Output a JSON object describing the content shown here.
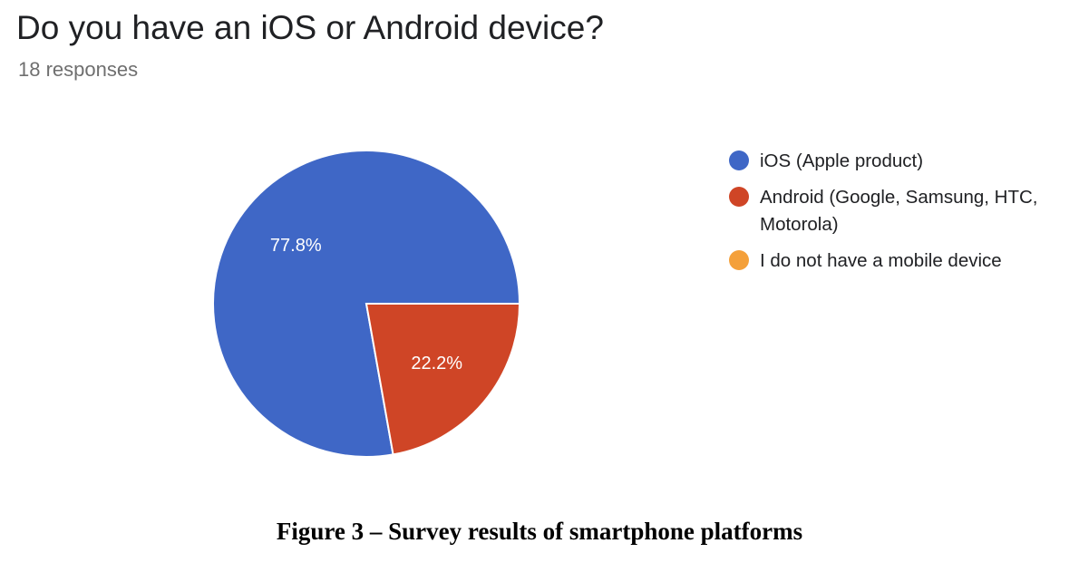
{
  "question": {
    "title": "Do you have an iOS or Android device?",
    "responses": "18 responses"
  },
  "chart_data": {
    "type": "pie",
    "categories": [
      "iOS (Apple product)",
      "Android (Google, Samsung, HTC, Motorola)",
      "I do not have a mobile device"
    ],
    "values": [
      77.8,
      22.2,
      0
    ],
    "value_labels": [
      "77.8%",
      "22.2%",
      ""
    ],
    "colors": [
      "#3f67c6",
      "#cf4526",
      "#f4a03a"
    ],
    "legend_position": "right"
  },
  "legend": {
    "items": [
      {
        "label": "iOS (Apple product)",
        "color": "#3f67c6"
      },
      {
        "label": "Android (Google, Samsung, HTC, Motorola)",
        "color": "#cf4526"
      },
      {
        "label": "I do not have a mobile device",
        "color": "#f4a03a"
      }
    ]
  },
  "caption": "Figure 3 – Survey results of smartphone platforms"
}
